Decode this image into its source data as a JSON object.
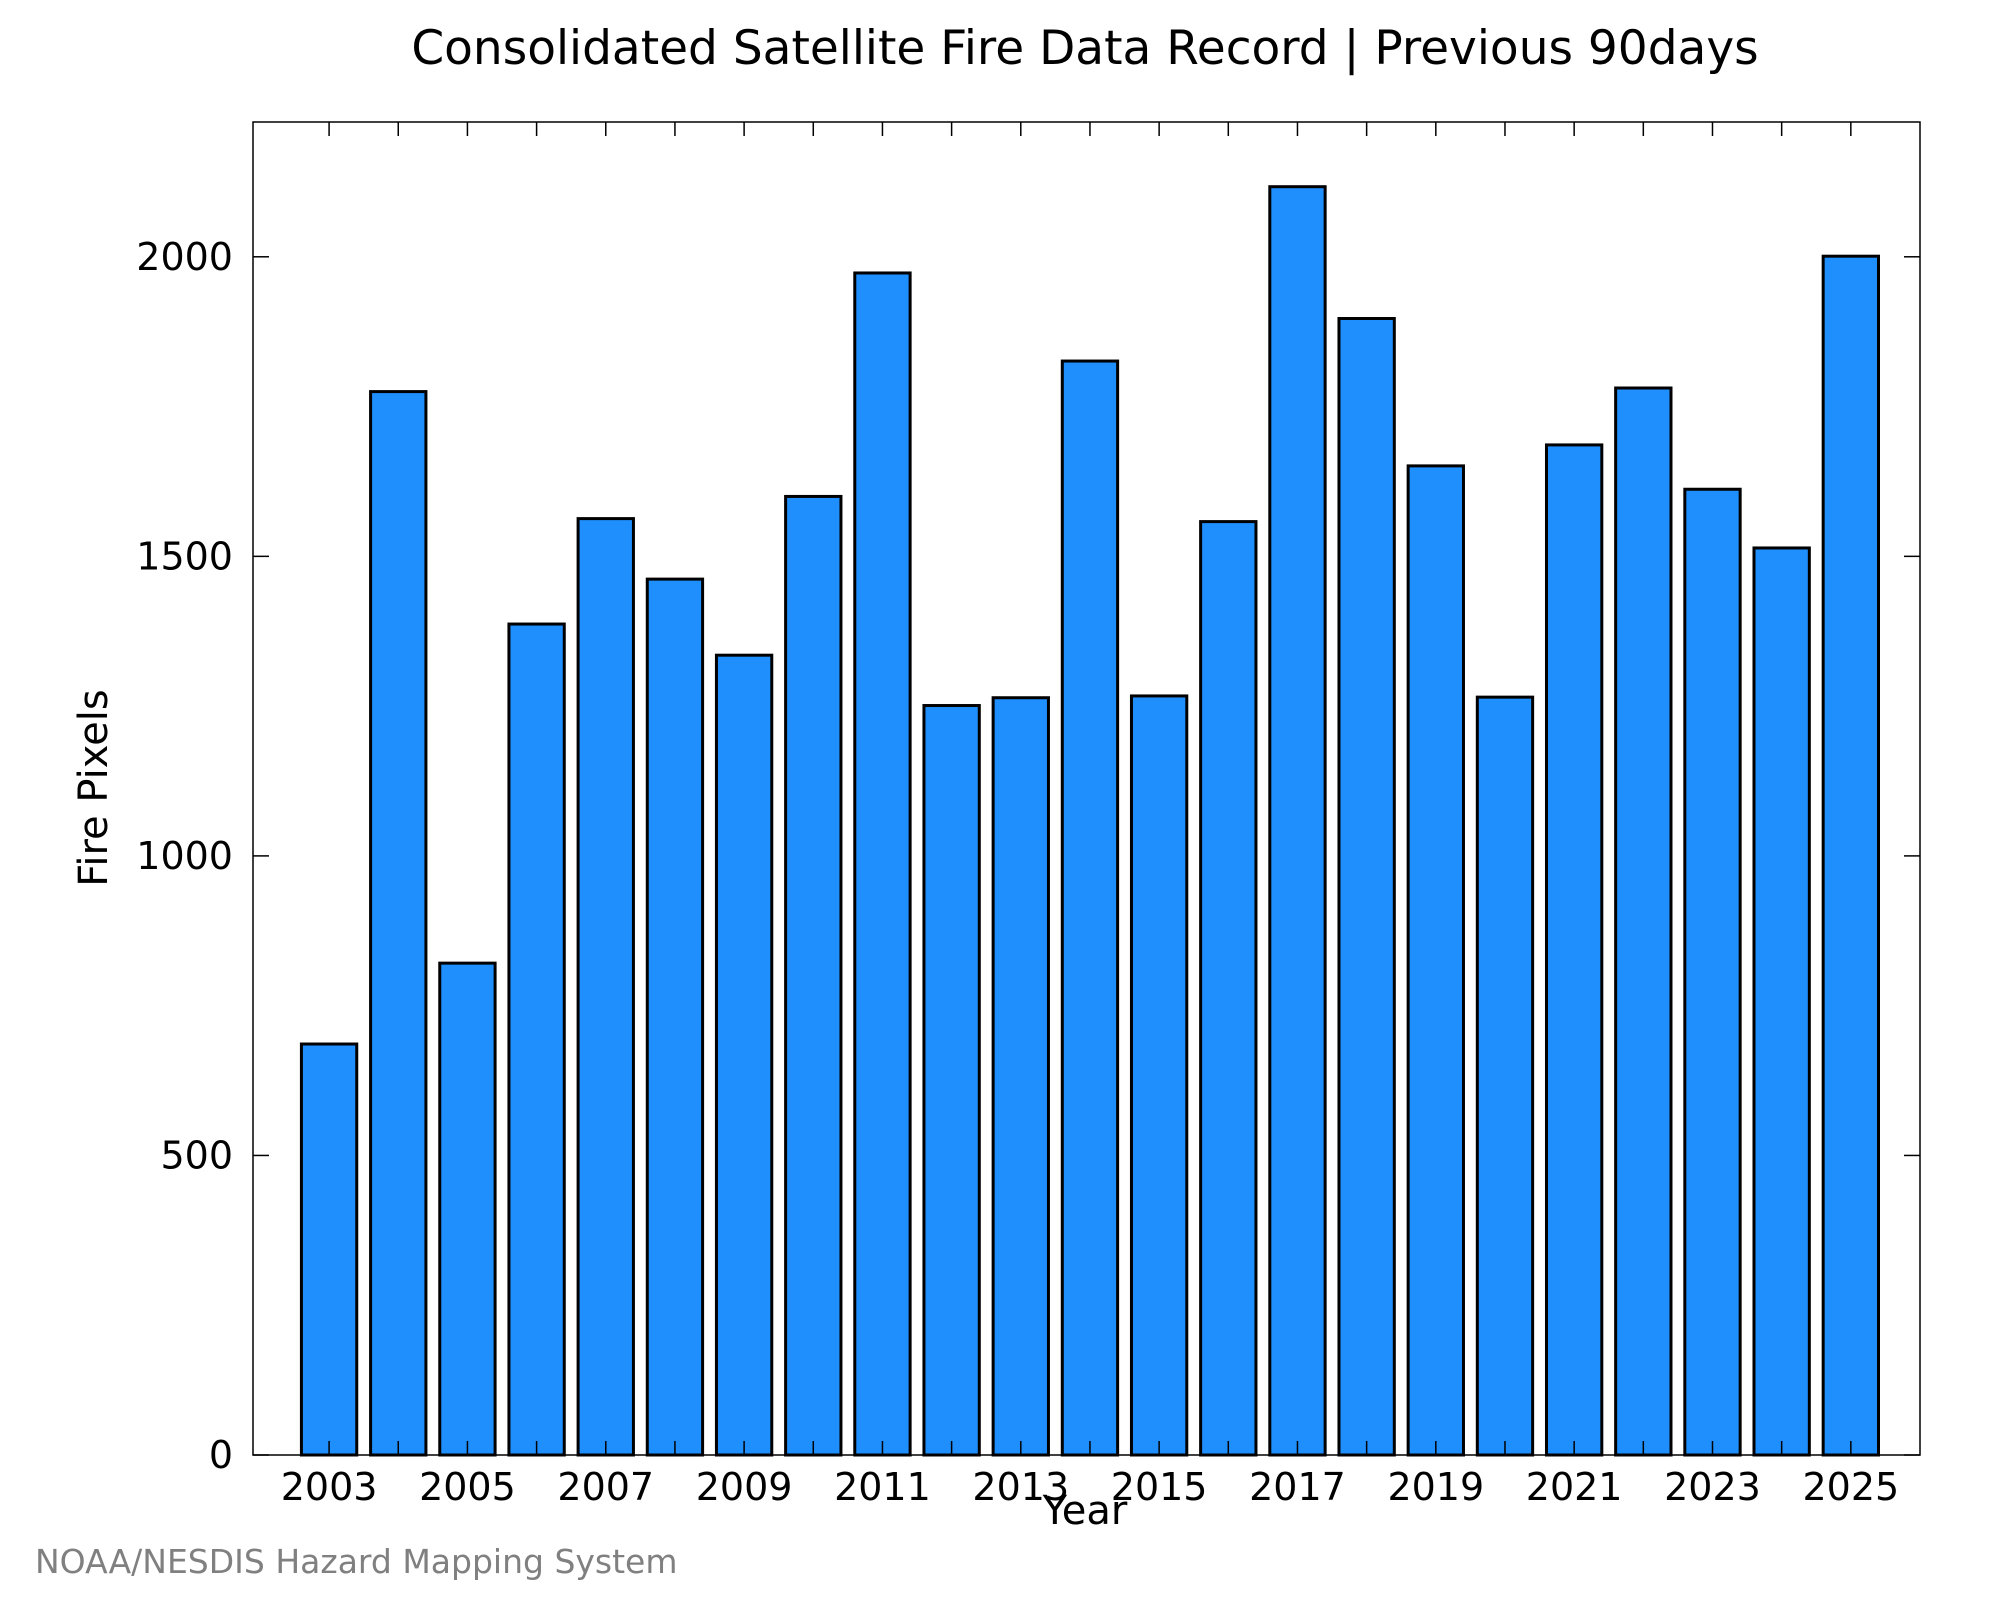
{
  "chart_data": {
    "type": "bar",
    "title": "Consolidated Satellite Fire Data Record | Previous 90days",
    "xlabel": "Year",
    "ylabel": "Fire Pixels",
    "categories": [
      "2003",
      "2004",
      "2005",
      "2006",
      "2007",
      "2008",
      "2009",
      "2010",
      "2011",
      "2012",
      "2013",
      "2014",
      "2015",
      "2016",
      "2017",
      "2018",
      "2019",
      "2020",
      "2021",
      "2022",
      "2023",
      "2024",
      "2025"
    ],
    "values": [
      686,
      1775,
      821,
      1387,
      1563,
      1462,
      1335,
      1600,
      1973,
      1251,
      1264,
      1826,
      1267,
      1558,
      2117,
      1897,
      1651,
      1265,
      1686,
      1781,
      1612,
      1514,
      2001
    ],
    "xtick_labels": [
      "2003",
      "2005",
      "2007",
      "2009",
      "2011",
      "2013",
      "2015",
      "2017",
      "2019",
      "2021",
      "2023",
      "2025"
    ],
    "yticks": [
      0,
      500,
      1000,
      1500,
      2000
    ],
    "ylim": [
      0,
      2225
    ],
    "grid": false,
    "bar_color": "#1f8ffd",
    "bar_edge_color": "#000000"
  },
  "credit": {
    "text": "NOAA/NESDIS Hazard Mapping System",
    "color": "#808080"
  }
}
